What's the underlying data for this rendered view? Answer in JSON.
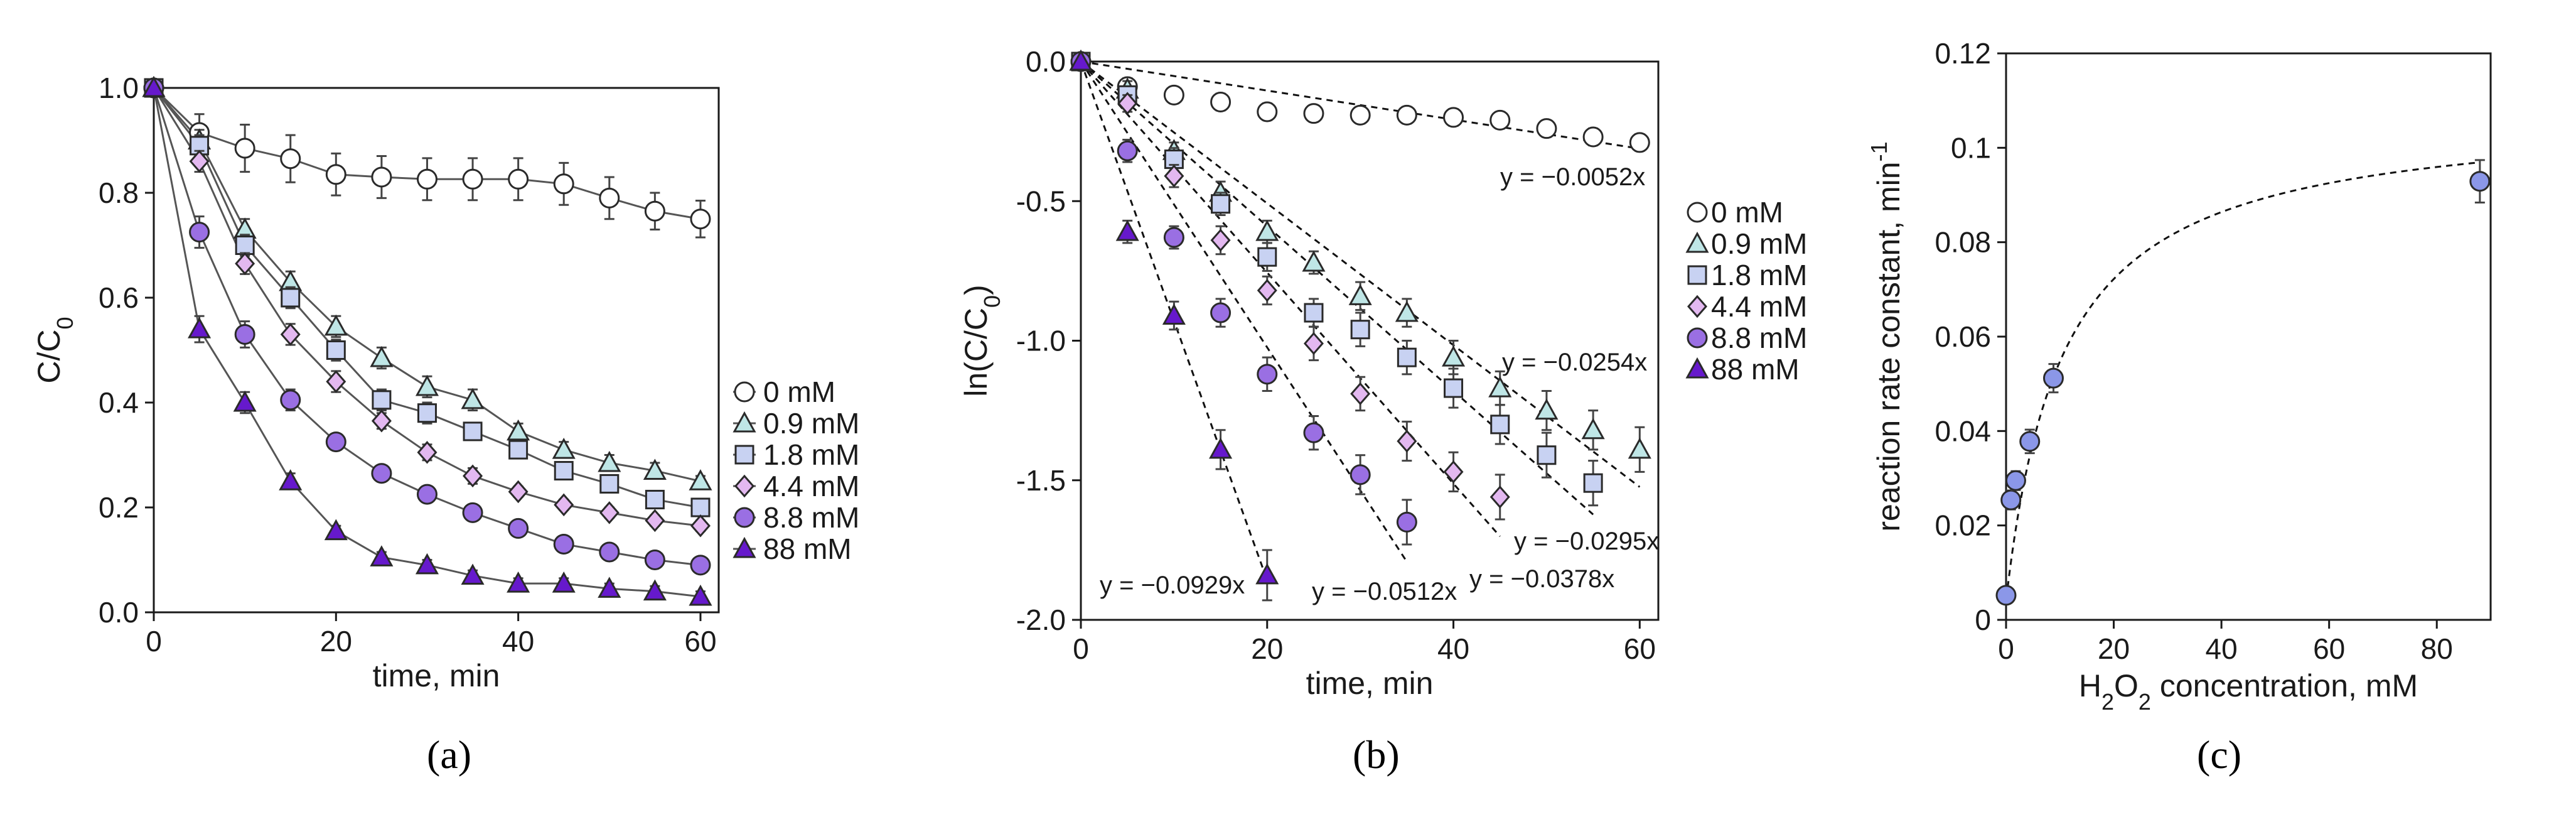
{
  "colors": {
    "axis": "#1a1a1a",
    "series_line": "#555555",
    "fit_line": "#111111",
    "open_marker": "#ffffff",
    "teal_marker": "#bfe6e6",
    "blue_marker": "#c8d2f2",
    "pink_marker": "#e3b8f0",
    "purple_marker": "#9a6fe3",
    "dark_purple_marker": "#6619cc",
    "rate_marker": "#8b97e8"
  },
  "chart_data": [
    {
      "id": "a",
      "panel_label": "(a)",
      "type": "line",
      "title": "",
      "xlabel": "time, min",
      "ylabel_main": "C/C",
      "ylabel_sub": "0",
      "xlim": [
        0,
        62
      ],
      "ylim": [
        0,
        1.0
      ],
      "xticks": [
        0,
        20,
        40,
        60
      ],
      "yticks": [
        0.0,
        0.2,
        0.4,
        0.6,
        0.8,
        1.0
      ],
      "xtick_labels": [
        "0",
        "20",
        "40",
        "60"
      ],
      "ytick_labels": [
        "0.0",
        "0.2",
        "0.4",
        "0.6",
        "0.8",
        "1.0"
      ],
      "grid": false,
      "legend": "right",
      "x": [
        0,
        5,
        10,
        15,
        20,
        25,
        30,
        35,
        40,
        45,
        50,
        55,
        60
      ],
      "series": [
        {
          "name": "0 mM",
          "marker": "circle",
          "color": "#ffffff",
          "values": [
            1.0,
            0.915,
            0.885,
            0.865,
            0.835,
            0.83,
            0.826,
            0.826,
            0.826,
            0.817,
            0.79,
            0.765,
            0.75
          ],
          "errors": [
            0,
            0.035,
            0.045,
            0.045,
            0.04,
            0.04,
            0.04,
            0.04,
            0.04,
            0.04,
            0.04,
            0.035,
            0.035
          ]
        },
        {
          "name": "0.9 mM",
          "marker": "triangle",
          "color": "#bfe6e6",
          "values": [
            1.0,
            0.9,
            0.73,
            0.63,
            0.545,
            0.485,
            0.43,
            0.405,
            0.345,
            0.31,
            0.285,
            0.27,
            0.25
          ],
          "errors": [
            0,
            0.02,
            0.02,
            0.02,
            0.02,
            0.02,
            0.02,
            0.02,
            0.015,
            0.015,
            0.015,
            0.015,
            0.01
          ]
        },
        {
          "name": "1.8 mM",
          "marker": "square",
          "color": "#c8d2f2",
          "values": [
            1.0,
            0.89,
            0.7,
            0.6,
            0.5,
            0.405,
            0.38,
            0.345,
            0.31,
            0.27,
            0.245,
            0.215,
            0.2
          ],
          "errors": [
            0,
            0.02,
            0.02,
            0.02,
            0.02,
            0.02,
            0.02,
            0.015,
            0.015,
            0.015,
            0.015,
            0.015,
            0.01
          ]
        },
        {
          "name": "4.4 mM",
          "marker": "diamond",
          "color": "#e3b8f0",
          "values": [
            1.0,
            0.86,
            0.665,
            0.53,
            0.44,
            0.365,
            0.305,
            0.26,
            0.23,
            0.205,
            0.19,
            0.175,
            0.165
          ],
          "errors": [
            0,
            0.02,
            0.02,
            0.02,
            0.02,
            0.015,
            0.015,
            0.015,
            0.01,
            0.01,
            0.01,
            0.01,
            0.01
          ]
        },
        {
          "name": "8.8 mM",
          "marker": "circle",
          "color": "#9a6fe3",
          "values": [
            1.0,
            0.725,
            0.53,
            0.405,
            0.325,
            0.265,
            0.225,
            0.19,
            0.16,
            0.13,
            0.115,
            0.1,
            0.09
          ],
          "errors": [
            0,
            0.03,
            0.025,
            0.02,
            0.015,
            0.015,
            0.01,
            0.01,
            0.01,
            0.01,
            0.01,
            0.01,
            0.01
          ]
        },
        {
          "name": "88 mM",
          "marker": "triangle",
          "color": "#6619cc",
          "values": [
            1.0,
            0.54,
            0.4,
            0.25,
            0.155,
            0.105,
            0.09,
            0.07,
            0.055,
            0.055,
            0.045,
            0.04,
            0.03
          ],
          "errors": [
            0,
            0.025,
            0.02,
            0.015,
            0.01,
            0.01,
            0.01,
            0.01,
            0.01,
            0.01,
            0.01,
            0.01,
            0.01
          ]
        }
      ]
    },
    {
      "id": "b",
      "panel_label": "(b)",
      "type": "scatter",
      "title": "",
      "xlabel": "time, min",
      "ylabel_main": "ln(C/C",
      "ylabel_sub": "0",
      "ylabel_end": ")",
      "xlim": [
        0,
        62
      ],
      "ylim": [
        -2.0,
        0.0
      ],
      "xticks": [
        0,
        20,
        40,
        60
      ],
      "yticks": [
        0.0,
        -0.5,
        -1.0,
        -1.5,
        -2.0
      ],
      "xtick_labels": [
        "0",
        "20",
        "40",
        "60"
      ],
      "ytick_labels": [
        "0.0",
        "-0.5",
        "-1.0",
        "-1.5",
        "-2.0"
      ],
      "grid": false,
      "legend": "right",
      "series": [
        {
          "name": "0 mM",
          "marker": "circle",
          "color": "#ffffff",
          "x": [
            0,
            5,
            10,
            15,
            20,
            25,
            30,
            35,
            40,
            45,
            50,
            55,
            60
          ],
          "values": [
            0,
            -0.09,
            -0.12,
            -0.145,
            -0.18,
            -0.186,
            -0.192,
            -0.192,
            -0.2,
            -0.21,
            -0.24,
            -0.27,
            -0.29
          ],
          "errors": [
            0,
            0.03,
            0.03,
            0.03,
            0.03,
            0.03,
            0.03,
            0.03,
            0.03,
            0.03,
            0.03,
            0.03,
            0.03
          ],
          "fit_slope": -0.0052,
          "fit_label": "y = −0.0052x",
          "fit_xmax": 60
        },
        {
          "name": "0.9 mM",
          "marker": "triangle",
          "color": "#bfe6e6",
          "x": [
            0,
            5,
            10,
            15,
            20,
            25,
            30,
            35,
            40,
            45,
            50,
            55,
            60
          ],
          "values": [
            0,
            -0.1,
            -0.32,
            -0.47,
            -0.61,
            -0.72,
            -0.84,
            -0.9,
            -1.06,
            -1.17,
            -1.25,
            -1.32,
            -1.39
          ],
          "errors": [
            0,
            0.03,
            0.03,
            0.04,
            0.04,
            0.04,
            0.05,
            0.05,
            0.06,
            0.06,
            0.07,
            0.07,
            0.08
          ],
          "fit_slope": -0.0254,
          "fit_label": "y = −0.0254x",
          "fit_xmax": 60
        },
        {
          "name": "1.8 mM",
          "marker": "square",
          "color": "#c8d2f2",
          "x": [
            0,
            5,
            10,
            15,
            20,
            25,
            30,
            35,
            40,
            45,
            50,
            55
          ],
          "values": [
            0,
            -0.12,
            -0.35,
            -0.51,
            -0.7,
            -0.9,
            -0.96,
            -1.06,
            -1.17,
            -1.3,
            -1.41,
            -1.51
          ],
          "errors": [
            0,
            0.03,
            0.04,
            0.04,
            0.05,
            0.05,
            0.06,
            0.06,
            0.07,
            0.07,
            0.08,
            0.08
          ],
          "fit_slope": -0.0295,
          "fit_label": "y = −0.0295x",
          "fit_xmax": 55
        },
        {
          "name": "4.4 mM",
          "marker": "diamond",
          "color": "#e3b8f0",
          "x": [
            0,
            5,
            10,
            15,
            20,
            25,
            30,
            35,
            40,
            45
          ],
          "values": [
            0,
            -0.15,
            -0.41,
            -0.64,
            -0.82,
            -1.01,
            -1.19,
            -1.36,
            -1.47,
            -1.56
          ],
          "errors": [
            0,
            0.03,
            0.04,
            0.05,
            0.05,
            0.06,
            0.06,
            0.07,
            0.07,
            0.08
          ],
          "fit_slope": -0.0378,
          "fit_label": "y = −0.0378x",
          "fit_xmax": 45
        },
        {
          "name": "8.8 mM",
          "marker": "circle",
          "color": "#9a6fe3",
          "x": [
            0,
            5,
            10,
            15,
            20,
            25,
            30,
            35
          ],
          "values": [
            0,
            -0.32,
            -0.63,
            -0.9,
            -1.12,
            -1.33,
            -1.48,
            -1.65
          ],
          "errors": [
            0,
            0.04,
            0.04,
            0.05,
            0.06,
            0.06,
            0.07,
            0.08
          ],
          "fit_slope": -0.0512,
          "fit_label": "y = −0.0512x",
          "fit_xmax": 35
        },
        {
          "name": "88 mM",
          "marker": "triangle",
          "color": "#6619cc",
          "x": [
            0,
            5,
            10,
            15,
            20
          ],
          "values": [
            0,
            -0.61,
            -0.91,
            -1.39,
            -1.84
          ],
          "errors": [
            0,
            0.04,
            0.05,
            0.07,
            0.09
          ],
          "fit_slope": -0.0929,
          "fit_label": "y = −0.0929x",
          "fit_xmax": 20
        }
      ]
    },
    {
      "id": "c",
      "panel_label": "(c)",
      "type": "scatter",
      "title": "",
      "xlabel_pre": "H",
      "xlabel_sub1": "2",
      "xlabel_mid": "O",
      "xlabel_sub2": "2",
      "xlabel_post": " concentration,  mM",
      "ylabel_main": "reaction rate constant, min",
      "ylabel_sup": "-1",
      "xlim": [
        0,
        90
      ],
      "ylim": [
        0,
        0.12
      ],
      "xticks": [
        0,
        20,
        40,
        60,
        80
      ],
      "yticks": [
        0,
        0.02,
        0.04,
        0.06,
        0.08,
        0.1,
        0.12
      ],
      "xtick_labels": [
        "0",
        "20",
        "40",
        "60",
        "80"
      ],
      "ytick_labels": [
        "0",
        "0.02",
        "0.04",
        "0.06",
        "0.08",
        "0.1",
        "0.12"
      ],
      "grid": false,
      "legend": "none",
      "x": [
        0,
        0.9,
        1.8,
        4.4,
        8.8,
        88
      ],
      "values": [
        0.0052,
        0.0254,
        0.0295,
        0.0378,
        0.0512,
        0.0929
      ],
      "errors": [
        0,
        0.002,
        0.002,
        0.0025,
        0.003,
        0.0045
      ],
      "fit_curve": "saturation (dashed)",
      "fit_vmax": 0.104,
      "fit_k": 10.5
    }
  ]
}
